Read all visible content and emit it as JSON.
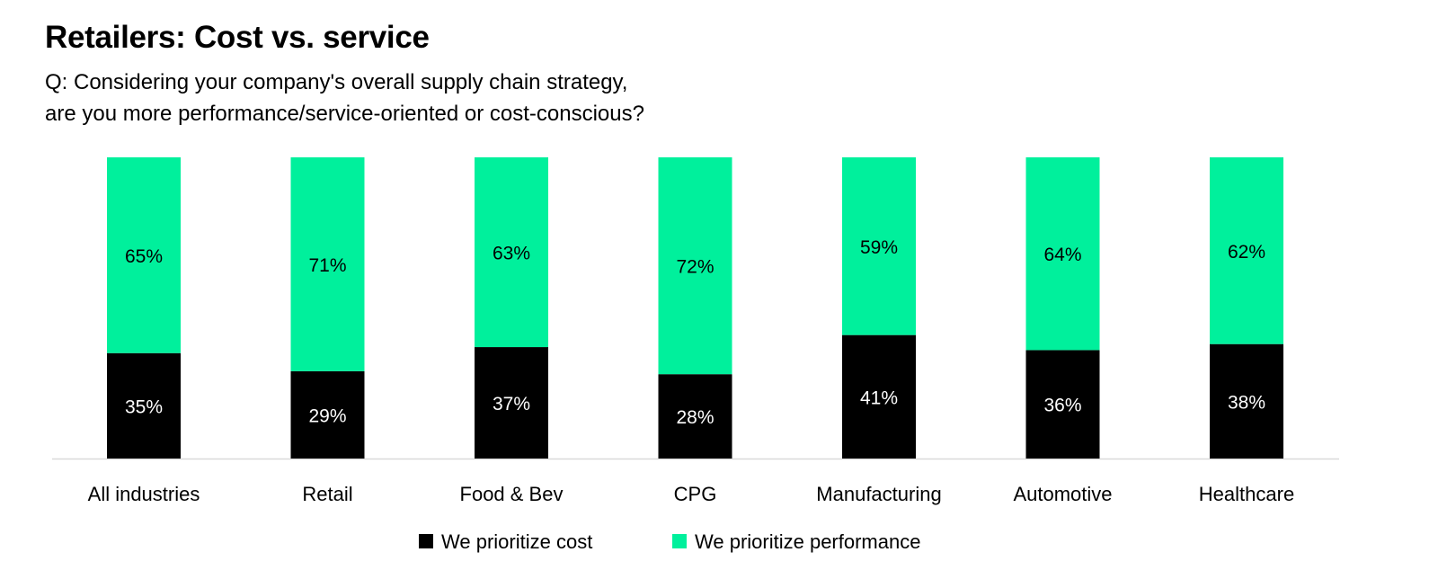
{
  "chart_data": {
    "type": "bar",
    "stacked": true,
    "title": "Retailers: Cost vs. service",
    "subtitle_lines": [
      "Q: Considering your company's overall supply chain strategy,",
      "are you more performance/service-oriented or cost-conscious?"
    ],
    "categories": [
      "All industries",
      "Retail",
      "Food & Bev",
      "CPG",
      "Manufacturing",
      "Automotive",
      "Healthcare"
    ],
    "series": [
      {
        "name": "We prioritize cost",
        "color": "#000000",
        "label_color": "#ffffff",
        "values": [
          35,
          29,
          37,
          28,
          41,
          36,
          38
        ]
      },
      {
        "name": "We prioritize performance",
        "color": "#00f09c",
        "label_color": "#000000",
        "values": [
          65,
          71,
          63,
          72,
          59,
          64,
          62
        ]
      }
    ],
    "value_suffix": "%",
    "ylim": [
      0,
      100
    ],
    "grid": false,
    "legend_position": "bottom"
  }
}
